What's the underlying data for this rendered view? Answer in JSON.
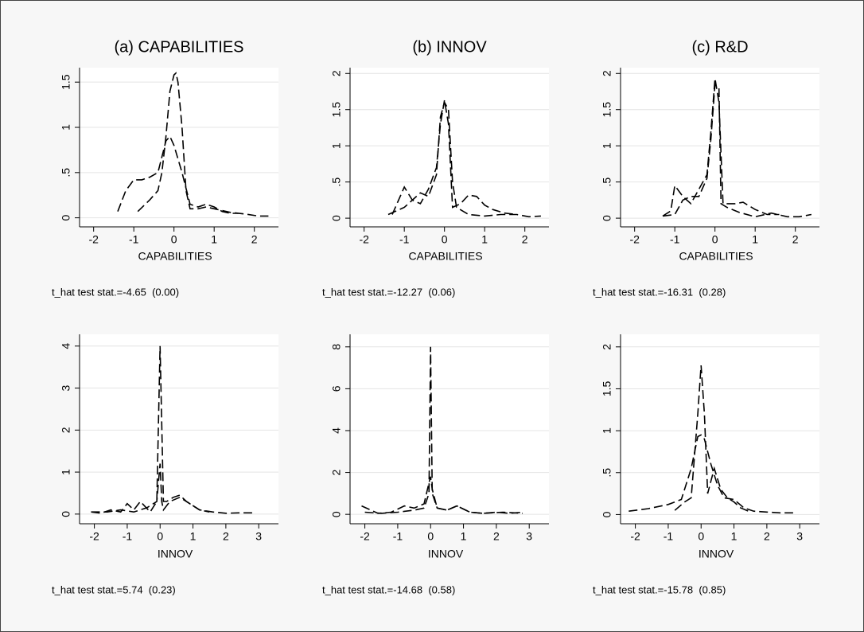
{
  "chart_data": [
    {
      "type": "line",
      "title": "(a) CAPABILITIES",
      "xlabel": "CAPABILITIES",
      "note": "t_hat test stat.=-4.65  (0.00)",
      "xlim": [
        -2.35,
        2.6
      ],
      "xticks": [
        -2,
        -1,
        0,
        1,
        2
      ],
      "ylim": [
        -0.1,
        1.66
      ],
      "yticks": [
        0,
        {
          "value": 0.5,
          "label": ".5"
        },
        1,
        1.5
      ],
      "grid": true,
      "series": [
        {
          "color": "#000000",
          "x": [
            -1.4,
            -1.2,
            -1.0,
            -0.8,
            -0.6,
            -0.4,
            -0.2,
            -0.1,
            0,
            0.2,
            0.4,
            0.6,
            0.8,
            1.0,
            1.2,
            1.4,
            1.6
          ],
          "values": [
            0.07,
            0.3,
            0.42,
            0.42,
            0.45,
            0.5,
            0.85,
            0.9,
            0.8,
            0.5,
            0.15,
            0.12,
            0.15,
            0.12,
            0.07,
            0.05,
            0.05
          ]
        },
        {
          "color": "#000000",
          "x": [
            -0.9,
            -0.6,
            -0.4,
            -0.3,
            -0.2,
            -0.1,
            0,
            0.05,
            0.1,
            0.2,
            0.3,
            0.4,
            0.6,
            0.8,
            1.0,
            1.4,
            1.8,
            2.1,
            2.35
          ],
          "values": [
            0.07,
            0.2,
            0.3,
            0.5,
            0.9,
            1.4,
            1.58,
            1.6,
            1.5,
            1.0,
            0.3,
            0.1,
            0.1,
            0.12,
            0.1,
            0.06,
            0.04,
            0.02,
            0.02
          ]
        }
      ]
    },
    {
      "type": "line",
      "title": "(b) INNOV",
      "xlabel": "CAPABILITIES",
      "note": "t_hat test stat.=-12.27  (0.06)",
      "xlim": [
        -2.35,
        2.6
      ],
      "xticks": [
        -2,
        -1,
        0,
        1,
        2
      ],
      "ylim": [
        -0.12,
        2.08
      ],
      "yticks": [
        0,
        {
          "value": 0.5,
          "label": ".5"
        },
        1,
        1.5,
        2
      ],
      "grid": true,
      "series": [
        {
          "color": "#000000",
          "x": [
            -1.3,
            -1.0,
            -0.8,
            -0.6,
            -0.4,
            -0.2,
            -0.1,
            0,
            0.1,
            0.2,
            0.4,
            0.6,
            0.8,
            1.0,
            1.2,
            1.5,
            1.8
          ],
          "values": [
            0.05,
            0.43,
            0.25,
            0.2,
            0.4,
            0.7,
            1.3,
            1.63,
            1.3,
            0.15,
            0.2,
            0.32,
            0.3,
            0.18,
            0.12,
            0.07,
            0.05
          ]
        },
        {
          "color": "#000000",
          "x": [
            -1.4,
            -1.0,
            -0.6,
            -0.4,
            -0.2,
            -0.1,
            0,
            0.1,
            0.2,
            0.3,
            0.6,
            1.0,
            1.4,
            1.8,
            2.1,
            2.4
          ],
          "values": [
            0.05,
            0.15,
            0.35,
            0.3,
            0.6,
            1.4,
            1.6,
            1.5,
            0.5,
            0.15,
            0.05,
            0.03,
            0.05,
            0.05,
            0.02,
            0.03
          ]
        }
      ]
    },
    {
      "type": "line",
      "title": "(c) R&D",
      "xlabel": "CAPABILITIES",
      "note": "t_hat test stat.=-16.31  (0.28)",
      "xlim": [
        -2.35,
        2.6
      ],
      "xticks": [
        -2,
        -1,
        0,
        1,
        2
      ],
      "ylim": [
        -0.12,
        2.08
      ],
      "yticks": [
        0,
        {
          "value": 0.5,
          "label": ".5"
        },
        1,
        1.5,
        2
      ],
      "grid": true,
      "series": [
        {
          "color": "#000000",
          "x": [
            -1.3,
            -1.1,
            -1.0,
            -0.8,
            -0.6,
            -0.4,
            -0.2,
            -0.1,
            0,
            0.1,
            0.2,
            0.5,
            0.7,
            1.0,
            1.3,
            1.6
          ],
          "values": [
            0.03,
            0.1,
            0.45,
            0.3,
            0.2,
            0.4,
            0.6,
            1.2,
            1.93,
            1.6,
            0.2,
            0.2,
            0.22,
            0.12,
            0.05,
            0.05
          ]
        },
        {
          "color": "#000000",
          "x": [
            -1.3,
            -1.0,
            -0.8,
            -0.6,
            -0.4,
            -0.2,
            -0.1,
            0,
            0.1,
            0.15,
            0.3,
            0.6,
            1.0,
            1.4,
            1.8,
            2.1,
            2.4
          ],
          "values": [
            0.03,
            0.05,
            0.25,
            0.3,
            0.3,
            0.55,
            1.1,
            1.85,
            1.8,
            0.2,
            0.15,
            0.08,
            0.02,
            0.07,
            0.02,
            0.02,
            0.05
          ]
        }
      ]
    },
    {
      "type": "line",
      "xlabel": "INNOV",
      "note": "t_hat test stat.=5.74  (0.23)",
      "xlim": [
        -2.45,
        3.6
      ],
      "xticks": [
        -2,
        -1,
        0,
        1,
        2,
        3
      ],
      "ylim": [
        -0.23,
        4.28
      ],
      "yticks": [
        0,
        1,
        2,
        3,
        4
      ],
      "grid": true,
      "series": [
        {
          "color": "#000000",
          "x": [
            -2.1,
            -1.8,
            -1.5,
            -1.2,
            -1.0,
            -0.8,
            -0.6,
            -0.3,
            -0.1,
            0,
            0.1,
            0.2,
            0.4,
            0.6,
            0.8,
            1.0,
            1.2,
            1.5
          ],
          "values": [
            0.05,
            0.02,
            0.1,
            0.05,
            0.25,
            0.1,
            0.3,
            0.05,
            0.3,
            4.0,
            0.3,
            0.3,
            0.4,
            0.45,
            0.3,
            0.2,
            0.1,
            0.05
          ]
        },
        {
          "color": "#000000",
          "x": [
            -2.1,
            -1.6,
            -1.2,
            -0.8,
            -0.4,
            -0.1,
            0,
            0.05,
            0.1,
            0.3,
            0.6,
            0.9,
            1.2,
            1.6,
            2.0,
            2.4,
            2.8
          ],
          "values": [
            0.05,
            0.05,
            0.1,
            0.05,
            0.15,
            0.3,
            1.2,
            0.3,
            0.1,
            0.3,
            0.4,
            0.25,
            0.1,
            0.05,
            0.02,
            0.03,
            0.03
          ]
        }
      ]
    },
    {
      "type": "line",
      "xlabel": "INNOV",
      "note": "t_hat test stat.=-14.68  (0.58)",
      "xlim": [
        -2.45,
        3.6
      ],
      "xticks": [
        -2,
        -1,
        0,
        1,
        2,
        3
      ],
      "ylim": [
        -0.45,
        8.6
      ],
      "yticks": [
        0,
        2,
        4,
        6,
        8
      ],
      "grid": true,
      "series": [
        {
          "color": "#000000",
          "x": [
            -2.1,
            -1.6,
            -1.2,
            -0.8,
            -0.5,
            -0.2,
            -0.05,
            0,
            0.05,
            0.2,
            0.5,
            0.8,
            1.2,
            1.6,
            2.0,
            2.4,
            2.8
          ],
          "values": [
            0.4,
            0.05,
            0.1,
            0.4,
            0.3,
            0.5,
            1.5,
            1.8,
            1.2,
            0.3,
            0.2,
            0.4,
            0.1,
            0.05,
            0.1,
            0.05,
            0.1
          ]
        },
        {
          "color": "#000000",
          "x": [
            -2.0,
            -1.5,
            -1.0,
            -0.5,
            -0.2,
            -0.05,
            0,
            0.05,
            0.2,
            0.5,
            0.8,
            1.2,
            1.6,
            2.2,
            2.8
          ],
          "values": [
            0.1,
            0.05,
            0.1,
            0.2,
            0.3,
            1,
            8.0,
            1,
            0.3,
            0.2,
            0.4,
            0.1,
            0.05,
            0.1,
            0.05
          ]
        }
      ]
    },
    {
      "type": "line",
      "xlabel": "INNOV",
      "note": "t_hat test stat.=-15.78  (0.85)",
      "xlim": [
        -2.45,
        3.6
      ],
      "xticks": [
        -2,
        -1,
        0,
        1,
        2,
        3
      ],
      "ylim": [
        -0.11,
        2.15
      ],
      "yticks": [
        0,
        {
          "value": 0.5,
          "label": ".5"
        },
        1,
        1.5,
        2
      ],
      "grid": true,
      "series": [
        {
          "color": "#000000",
          "x": [
            -2.2,
            -1.6,
            -1.0,
            -0.6,
            -0.3,
            -0.1,
            0,
            0.1,
            0.3,
            0.5,
            0.7,
            1.0,
            1.3,
            1.6,
            2.0,
            2.4,
            2.8
          ],
          "values": [
            0.04,
            0.07,
            0.12,
            0.18,
            0.55,
            0.93,
            0.95,
            0.9,
            0.6,
            0.35,
            0.2,
            0.18,
            0.08,
            0.04,
            0.03,
            0.02,
            0.02
          ]
        },
        {
          "color": "#000000",
          "x": [
            -0.8,
            -0.5,
            -0.3,
            -0.1,
            0,
            0.1,
            0.2,
            0.3,
            0.4,
            0.6,
            0.8,
            1.0,
            1.2,
            1.5
          ],
          "values": [
            0.05,
            0.15,
            0.2,
            1.2,
            1.78,
            1.2,
            0.25,
            0.4,
            0.55,
            0.3,
            0.2,
            0.15,
            0.08,
            0.03
          ]
        }
      ]
    }
  ]
}
